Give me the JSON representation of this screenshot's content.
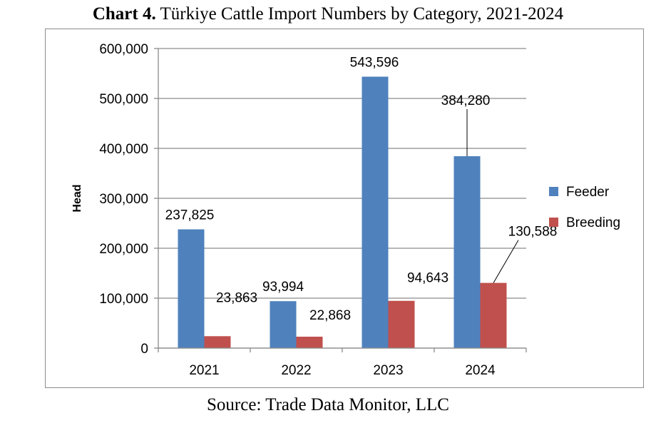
{
  "title": {
    "bold": "Chart 4.",
    "rest": "Türkiye Cattle Import Numbers by Category, 2021-2024"
  },
  "source": "Source: Trade Data Monitor, LLC",
  "chart_data": {
    "type": "bar",
    "categories": [
      "2021",
      "2022",
      "2023",
      "2024"
    ],
    "series": [
      {
        "name": "Feeder",
        "values": [
          237825,
          93994,
          543596,
          384280
        ],
        "labels": [
          "237,825",
          "93,994",
          "543,596",
          "384,280"
        ],
        "color": "#4f81bd"
      },
      {
        "name": "Breeding",
        "values": [
          23863,
          22868,
          94643,
          130588
        ],
        "labels": [
          "23,863",
          "22,868",
          "94,643",
          "130,588"
        ],
        "color": "#c0504d"
      }
    ],
    "ylabel": "Head",
    "xlabel": "",
    "ylim": [
      0,
      600000
    ],
    "yticks": [
      0,
      100000,
      200000,
      300000,
      400000,
      500000,
      600000
    ],
    "ytick_labels": [
      "0",
      "100,000",
      "200,000",
      "300,000",
      "400,000",
      "500,000",
      "600,000"
    ],
    "grid": true,
    "legend_position": "right"
  }
}
